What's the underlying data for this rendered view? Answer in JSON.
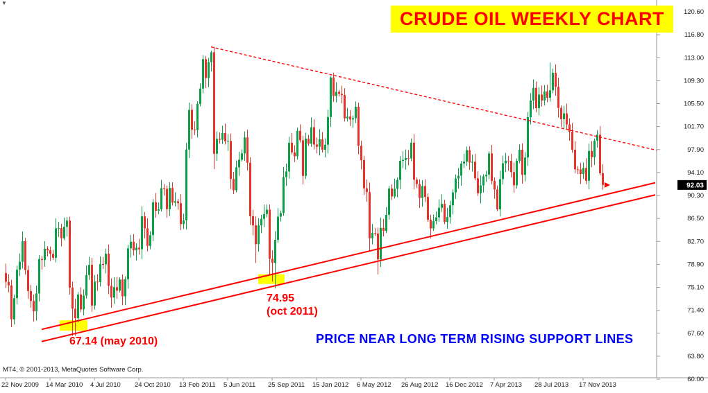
{
  "window": {
    "shift_marker": "▼",
    "copyright": "MT4, © 2001-2013, MetaQuotes Software Corp."
  },
  "title": {
    "text": "CRUDE OIL WEEKLY CHART",
    "color": "#FF0000",
    "bg": "#FFFF00"
  },
  "annotations": {
    "low1": "67.14 (may 2010)",
    "low2_line1": "74.95",
    "low2_line2": "(oct 2011)",
    "support_note": "PRICE NEAR LONG TERM RISING SUPPORT LINES",
    "accent_color": "#FF0000",
    "note_color": "#0000FF"
  },
  "price_scale": {
    "current": "92.03",
    "labels": [
      "120.60",
      "116.80",
      "113.00",
      "109.30",
      "105.50",
      "101.70",
      "97.90",
      "94.10",
      "90.30",
      "86.50",
      "82.70",
      "78.90",
      "75.10",
      "71.40",
      "67.60",
      "63.80",
      "60.00"
    ]
  },
  "time_scale": {
    "weeks_between_labels": 16,
    "labels": [
      "22 Nov 2009",
      "14 Mar 2010",
      "4 Jul 2010",
      "24 Oct 2010",
      "13 Feb 2011",
      "5 Jun 2011",
      "25 Sep 2011",
      "15 Jan 2012",
      "6 May 2012",
      "26 Aug 2012",
      "16 Dec 2012",
      "7 Apr 2013",
      "28 Jul 2013",
      "17 Nov 2013"
    ],
    "axis_text_color": "#222222"
  },
  "chart_data": {
    "type": "candlestick",
    "title": "CRUDE OIL WEEKLY CHART",
    "instrument": "Crude Oil",
    "timeframe": "Weekly",
    "y_range": [
      60.0,
      120.6
    ],
    "x_axis": {
      "start": "22 Nov 2009",
      "interval": "1 week",
      "bars": 216
    },
    "first_open": 77.5,
    "last_price": 92.03,
    "closes": [
      76.05,
      75.47,
      69.87,
      73.36,
      78.05,
      79.36,
      82.75,
      78.0,
      74.54,
      72.89,
      71.19,
      74.13,
      79.81,
      79.66,
      81.5,
      81.24,
      80.68,
      80.0,
      84.87,
      84.92,
      83.24,
      85.12,
      86.15,
      75.11,
      71.61,
      70.04,
      73.97,
      71.51,
      73.78,
      77.18,
      78.86,
      72.14,
      76.09,
      76.01,
      78.98,
      78.95,
      80.7,
      75.39,
      73.46,
      75.17,
      74.6,
      76.45,
      73.66,
      76.49,
      81.58,
      82.66,
      81.25,
      81.69,
      81.43,
      86.85,
      84.88,
      81.98,
      83.76,
      89.19,
      87.79,
      88.02,
      91.51,
      91.38,
      88.03,
      91.54,
      89.11,
      89.34,
      89.03,
      85.58,
      86.2,
      97.88,
      104.42,
      101.16,
      101.07,
      105.4,
      107.94,
      112.79,
      109.66,
      112.29,
      113.93,
      97.18,
      99.65,
      99.49,
      100.59,
      99.22,
      99.29,
      93.01,
      91.16,
      94.94,
      96.2,
      97.24,
      99.87,
      95.7,
      86.88,
      85.38,
      82.26,
      85.37,
      86.45,
      87.24,
      87.96,
      79.85,
      79.2,
      82.98,
      86.8,
      87.4,
      93.32,
      94.26,
      98.99,
      97.41,
      96.77,
      100.96,
      99.41,
      93.53,
      99.68,
      98.83,
      101.56,
      98.7,
      98.33,
      99.56,
      97.84,
      98.67,
      103.24,
      109.77,
      106.7,
      107.4,
      107.06,
      106.87,
      103.02,
      103.31,
      102.83,
      103.05,
      104.93,
      98.49,
      96.13,
      91.48,
      90.86,
      83.23,
      84.1,
      84.03,
      79.76,
      84.96,
      84.45,
      87.1,
      91.44,
      90.13,
      91.4,
      92.87,
      96.01,
      96.15,
      96.47,
      96.42,
      99.0,
      92.89,
      92.19,
      89.88,
      91.86,
      90.05,
      86.28,
      84.86,
      86.07,
      86.67,
      88.28,
      88.91,
      85.93,
      86.73,
      88.66,
      90.8,
      93.09,
      93.56,
      95.56,
      95.88,
      97.77,
      95.72,
      95.86,
      93.13,
      90.68,
      91.95,
      93.45,
      93.71,
      97.23,
      92.7,
      91.29,
      88.01,
      93.0,
      95.61,
      96.04,
      96.02,
      94.15,
      91.97,
      96.03,
      97.85,
      93.69,
      96.56,
      103.22,
      105.95,
      108.05,
      104.7,
      106.94,
      105.97,
      107.46,
      106.42,
      107.65,
      110.53,
      108.21,
      104.75,
      102.87,
      103.84,
      102.02,
      100.81,
      97.85,
      94.61,
      94.6,
      93.84,
      94.84,
      92.72,
      97.65,
      96.6,
      99.32,
      100.32,
      93.96,
      92.03
    ],
    "overrides": {
      "2": {
        "low": 68.59
      },
      "10": {
        "low": 69.5
      },
      "24": {
        "low": 67.15
      },
      "25": {
        "low": 67.14
      },
      "31": {
        "low": 71.09
      },
      "71": {
        "high": 113.46
      },
      "73": {
        "high": 113.0
      },
      "74": {
        "high": 114.18
      },
      "75": {
        "high": 114.83,
        "low": 94.63
      },
      "90": {
        "low": 79.17
      },
      "95": {
        "low": 77.11
      },
      "96": {
        "low": 76.1
      },
      "97": {
        "low": 74.95
      },
      "117": {
        "high": 109.95
      },
      "118": {
        "high": 110.55
      },
      "131": {
        "low": 81.21
      },
      "134": {
        "low": 77.28
      },
      "147": {
        "high": 100.42
      },
      "196": {
        "high": 112.24
      },
      "215": {
        "low": 91.24
      }
    },
    "support_lines": [
      {
        "w1": 13,
        "p1": 68.2,
        "w2": 234,
        "p2": 92.4,
        "style": "solid"
      },
      {
        "w1": 13,
        "p1": 66.2,
        "w2": 234,
        "p2": 90.4,
        "style": "solid"
      }
    ],
    "descending_trendline": {
      "w1": 74,
      "p1": 114.8,
      "w2": 236,
      "p2": 97.6,
      "style": "dashed"
    },
    "highlight_boxes": [
      {
        "w1": 20,
        "w2": 29,
        "p_top": 69.7,
        "p_bot": 68.0,
        "label": "67.14 low (may 2010)"
      },
      {
        "w1": 91.5,
        "w2": 100,
        "p_top": 77.3,
        "p_bot": 75.7,
        "label": "74.95 low (oct 2011)"
      }
    ],
    "key_points": [
      {
        "price": 67.14,
        "date": "may 2010"
      },
      {
        "price": 74.95,
        "date": "oct 2011"
      },
      {
        "price": 92.03,
        "date": "latest"
      }
    ],
    "colors": {
      "up": "#0aa048",
      "down": "#e63229",
      "trend": "#FF0000",
      "highlight": "#FFFF00",
      "badge_bg": "#000000",
      "badge_text": "#FFFFFF"
    }
  }
}
